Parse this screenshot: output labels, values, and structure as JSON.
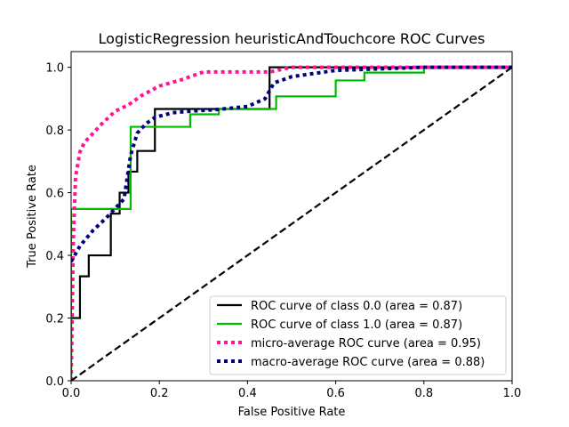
{
  "chart_data": {
    "type": "line",
    "title": "LogisticRegression heuristicAndTouchcore ROC Curves",
    "xlabel": "False Positive Rate",
    "ylabel": "True Positive Rate",
    "xlim": [
      0.0,
      1.0
    ],
    "ylim": [
      0.0,
      1.05
    ],
    "xticks": [
      0.0,
      0.2,
      0.4,
      0.6,
      0.8,
      1.0
    ],
    "xtick_labels": [
      "0.0",
      "0.2",
      "0.4",
      "0.6",
      "0.8",
      "1.0"
    ],
    "yticks": [
      0.0,
      0.2,
      0.4,
      0.6,
      0.8,
      1.0
    ],
    "ytick_labels": [
      "0.0",
      "0.2",
      "0.4",
      "0.6",
      "0.8",
      "1.0"
    ],
    "grid": false,
    "legend_position": "lower-right",
    "series": [
      {
        "name": "ROC curve of class 0.0 (area = 0.87)",
        "color": "#000000",
        "style": "solid",
        "x": [
          0,
          0,
          0.02,
          0.02,
          0.04,
          0.04,
          0.09,
          0.09,
          0.11,
          0.11,
          0.13,
          0.13,
          0.15,
          0.15,
          0.19,
          0.19,
          0.45,
          0.45,
          1.0
        ],
        "y": [
          0,
          0.2,
          0.2,
          0.333,
          0.333,
          0.4,
          0.4,
          0.533,
          0.533,
          0.6,
          0.6,
          0.667,
          0.667,
          0.733,
          0.733,
          0.867,
          0.867,
          1.0,
          1.0
        ]
      },
      {
        "name": "ROC curve of class 1.0 (area = 0.87)",
        "color": "#00bb00",
        "style": "solid",
        "x": [
          0,
          0,
          0.135,
          0.135,
          0.27,
          0.27,
          0.335,
          0.335,
          0.465,
          0.465,
          0.6,
          0.6,
          0.665,
          0.665,
          0.8,
          0.8,
          1.0
        ],
        "y": [
          0,
          0.548,
          0.548,
          0.81,
          0.81,
          0.85,
          0.85,
          0.867,
          0.867,
          0.907,
          0.907,
          0.958,
          0.958,
          0.983,
          0.983,
          1.0,
          1.0
        ]
      },
      {
        "name": "micro-average ROC curve (area = 0.95)",
        "color": "#ff1493",
        "style": "dotted",
        "x": [
          0,
          0.005,
          0.01,
          0.02,
          0.03,
          0.05,
          0.07,
          0.1,
          0.13,
          0.16,
          0.2,
          0.25,
          0.27,
          0.3,
          0.35,
          0.45,
          0.5,
          0.55,
          0.7,
          0.85,
          1.0
        ],
        "y": [
          0,
          0.45,
          0.65,
          0.73,
          0.76,
          0.79,
          0.82,
          0.86,
          0.88,
          0.91,
          0.94,
          0.96,
          0.97,
          0.985,
          0.985,
          0.985,
          1.0,
          1.0,
          1.0,
          1.0,
          1.0
        ]
      },
      {
        "name": "macro-average ROC curve (area = 0.88)",
        "color": "#000080",
        "style": "dotted",
        "x": [
          0,
          0.02,
          0.05,
          0.08,
          0.1,
          0.12,
          0.135,
          0.15,
          0.17,
          0.19,
          0.23,
          0.27,
          0.33,
          0.4,
          0.44,
          0.46,
          0.5,
          0.6,
          0.7,
          0.8,
          0.9,
          1.0
        ],
        "y": [
          0.38,
          0.43,
          0.48,
          0.52,
          0.55,
          0.58,
          0.72,
          0.79,
          0.82,
          0.84,
          0.855,
          0.86,
          0.865,
          0.875,
          0.9,
          0.95,
          0.97,
          0.99,
          0.995,
          1.0,
          1.0,
          1.0
        ]
      },
      {
        "color": "#000000",
        "style": "dashed",
        "x": [
          0,
          1
        ],
        "y": [
          0,
          1
        ]
      }
    ]
  }
}
